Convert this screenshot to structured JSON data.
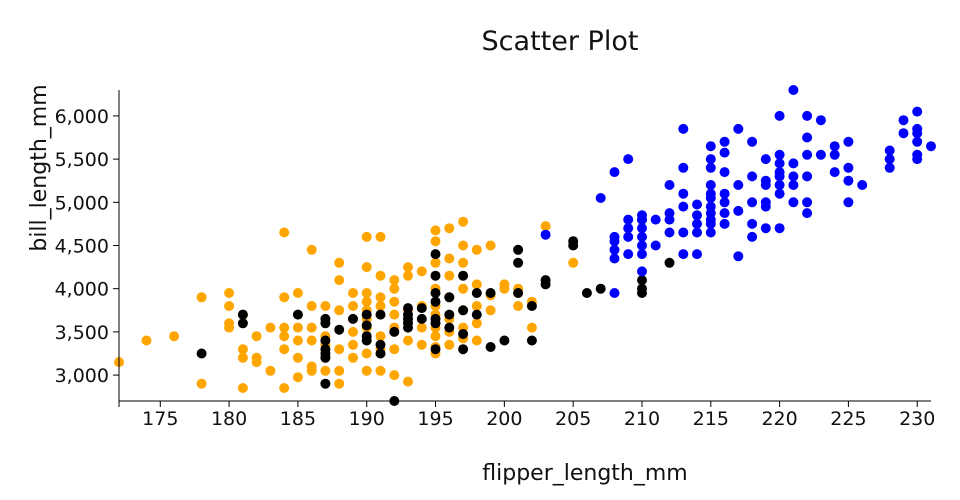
{
  "chart_data": {
    "type": "scatter",
    "title": "Scatter Plot",
    "xlabel": "flipper_length_mm",
    "ylabel": "bill_length_mm",
    "xlim": [
      172,
      231
    ],
    "ylim": [
      2700,
      6300
    ],
    "x_ticks": [
      {
        "value": 175,
        "label": "175"
      },
      {
        "value": 180,
        "label": "180"
      },
      {
        "value": 185,
        "label": "185"
      },
      {
        "value": 190,
        "label": "190"
      },
      {
        "value": 195,
        "label": "195"
      },
      {
        "value": 200,
        "label": "200"
      },
      {
        "value": 205,
        "label": "205"
      },
      {
        "value": 210,
        "label": "210"
      },
      {
        "value": 215,
        "label": "215"
      },
      {
        "value": 220,
        "label": "220"
      },
      {
        "value": 225,
        "label": "225"
      },
      {
        "value": 230,
        "label": "230"
      }
    ],
    "y_ticks": [
      {
        "value": 3000,
        "label": "3,000"
      },
      {
        "value": 3500,
        "label": "3,500"
      },
      {
        "value": 4000,
        "label": "4,000"
      },
      {
        "value": 4500,
        "label": "4,500"
      },
      {
        "value": 5000,
        "label": "5,000"
      },
      {
        "value": 5500,
        "label": "5,500"
      },
      {
        "value": 6000,
        "label": "6,000"
      }
    ],
    "grid": false,
    "legend": "none",
    "series": [
      {
        "color": "#FFA500",
        "points": [
          [
            172,
            3150
          ],
          [
            174,
            3400
          ],
          [
            176,
            3450
          ],
          [
            178,
            3900
          ],
          [
            178,
            2900
          ],
          [
            180,
            3950
          ],
          [
            180,
            3800
          ],
          [
            180,
            3600
          ],
          [
            180,
            3550
          ],
          [
            181,
            3700
          ],
          [
            181,
            3300
          ],
          [
            181,
            3200
          ],
          [
            181,
            2850
          ],
          [
            182,
            3450
          ],
          [
            182,
            3200
          ],
          [
            182,
            3150
          ],
          [
            183,
            3550
          ],
          [
            183,
            3050
          ],
          [
            184,
            4650
          ],
          [
            184,
            3900
          ],
          [
            184,
            3550
          ],
          [
            184,
            3450
          ],
          [
            184,
            3300
          ],
          [
            184,
            2850
          ],
          [
            185,
            3950
          ],
          [
            185,
            3700
          ],
          [
            185,
            3550
          ],
          [
            185,
            3400
          ],
          [
            185,
            3200
          ],
          [
            185,
            2975
          ],
          [
            186,
            4450
          ],
          [
            186,
            3800
          ],
          [
            186,
            3550
          ],
          [
            186,
            3400
          ],
          [
            186,
            3100
          ],
          [
            186,
            3050
          ],
          [
            187,
            3800
          ],
          [
            187,
            3450
          ],
          [
            187,
            3350
          ],
          [
            187,
            3200
          ],
          [
            187,
            3050
          ],
          [
            188,
            4300
          ],
          [
            188,
            4100
          ],
          [
            188,
            3750
          ],
          [
            188,
            3300
          ],
          [
            188,
            3050
          ],
          [
            188,
            2900
          ],
          [
            189,
            3950
          ],
          [
            189,
            3800
          ],
          [
            189,
            3650
          ],
          [
            189,
            3500
          ],
          [
            189,
            3350
          ],
          [
            189,
            3200
          ],
          [
            190,
            4600
          ],
          [
            190,
            4250
          ],
          [
            190,
            3950
          ],
          [
            190,
            3850
          ],
          [
            190,
            3750
          ],
          [
            190,
            3650
          ],
          [
            190,
            3550
          ],
          [
            190,
            3400
          ],
          [
            190,
            3250
          ],
          [
            190,
            3050
          ],
          [
            191,
            4600
          ],
          [
            191,
            4150
          ],
          [
            191,
            3900
          ],
          [
            191,
            3800
          ],
          [
            191,
            3700
          ],
          [
            191,
            3450
          ],
          [
            191,
            3300
          ],
          [
            191,
            3050
          ],
          [
            192,
            4100
          ],
          [
            192,
            4000
          ],
          [
            192,
            3850
          ],
          [
            192,
            3700
          ],
          [
            192,
            3550
          ],
          [
            192,
            3300
          ],
          [
            192,
            3000
          ],
          [
            193,
            4250
          ],
          [
            193,
            4150
          ],
          [
            193,
            3750
          ],
          [
            193,
            3600
          ],
          [
            193,
            3400
          ],
          [
            193,
            2925
          ],
          [
            194,
            4200
          ],
          [
            194,
            3800
          ],
          [
            194,
            3550
          ],
          [
            194,
            3350
          ],
          [
            195,
            4675
          ],
          [
            195,
            4550
          ],
          [
            195,
            4300
          ],
          [
            195,
            4000
          ],
          [
            195,
            3800
          ],
          [
            195,
            3700
          ],
          [
            195,
            3550
          ],
          [
            195,
            3450
          ],
          [
            195,
            3325
          ],
          [
            195,
            3250
          ],
          [
            196,
            4700
          ],
          [
            196,
            4350
          ],
          [
            196,
            4150
          ],
          [
            196,
            3900
          ],
          [
            196,
            3650
          ],
          [
            196,
            3500
          ],
          [
            196,
            3350
          ],
          [
            197,
            4775
          ],
          [
            197,
            4500
          ],
          [
            197,
            4300
          ],
          [
            197,
            4000
          ],
          [
            197,
            3750
          ],
          [
            197,
            3550
          ],
          [
            197,
            3425
          ],
          [
            198,
            4450
          ],
          [
            198,
            4050
          ],
          [
            198,
            3800
          ],
          [
            198,
            3600
          ],
          [
            198,
            3400
          ],
          [
            199,
            4500
          ],
          [
            199,
            3925
          ],
          [
            199,
            3750
          ],
          [
            200,
            4050
          ],
          [
            200,
            4000
          ],
          [
            201,
            4000
          ],
          [
            201,
            3950
          ],
          [
            201,
            3800
          ],
          [
            202,
            3850
          ],
          [
            202,
            3550
          ],
          [
            203,
            4725
          ],
          [
            205,
            4300
          ]
        ]
      },
      {
        "color": "#000000",
        "points": [
          [
            178,
            3250
          ],
          [
            181,
            3700
          ],
          [
            181,
            3600
          ],
          [
            185,
            3700
          ],
          [
            187,
            3650
          ],
          [
            187,
            3600
          ],
          [
            187,
            3400
          ],
          [
            187,
            3300
          ],
          [
            187,
            3250
          ],
          [
            187,
            3200
          ],
          [
            187,
            2900
          ],
          [
            188,
            3525
          ],
          [
            189,
            3650
          ],
          [
            190,
            3700
          ],
          [
            190,
            3575
          ],
          [
            190,
            3450
          ],
          [
            190,
            3400
          ],
          [
            191,
            3700
          ],
          [
            191,
            3350
          ],
          [
            191,
            3250
          ],
          [
            192,
            2700
          ],
          [
            192,
            3500
          ],
          [
            193,
            3775
          ],
          [
            193,
            3700
          ],
          [
            193,
            3650
          ],
          [
            193,
            3600
          ],
          [
            193,
            3550
          ],
          [
            194,
            3775
          ],
          [
            194,
            3650
          ],
          [
            195,
            4400
          ],
          [
            195,
            4150
          ],
          [
            195,
            3950
          ],
          [
            195,
            3850
          ],
          [
            195,
            3650
          ],
          [
            195,
            3600
          ],
          [
            195,
            3300
          ],
          [
            196,
            3900
          ],
          [
            196,
            3700
          ],
          [
            196,
            3550
          ],
          [
            197,
            4150
          ],
          [
            197,
            3750
          ],
          [
            197,
            3475
          ],
          [
            197,
            3300
          ],
          [
            198,
            3950
          ],
          [
            198,
            3700
          ],
          [
            199,
            3950
          ],
          [
            199,
            3325
          ],
          [
            200,
            3400
          ],
          [
            201,
            4450
          ],
          [
            201,
            4300
          ],
          [
            201,
            3950
          ],
          [
            202,
            3800
          ],
          [
            202,
            3400
          ],
          [
            203,
            4100
          ],
          [
            203,
            4050
          ],
          [
            205,
            4550
          ],
          [
            205,
            4500
          ],
          [
            206,
            3950
          ],
          [
            207,
            4000
          ],
          [
            210,
            4800
          ],
          [
            210,
            4100
          ],
          [
            210,
            4000
          ],
          [
            210,
            3950
          ],
          [
            212,
            4300
          ]
        ]
      },
      {
        "color": "#0000FF",
        "points": [
          [
            203,
            4625
          ],
          [
            207,
            5050
          ],
          [
            208,
            5350
          ],
          [
            208,
            4600
          ],
          [
            208,
            4550
          ],
          [
            208,
            4450
          ],
          [
            208,
            4350
          ],
          [
            208,
            3950
          ],
          [
            209,
            5500
          ],
          [
            209,
            4800
          ],
          [
            209,
            4700
          ],
          [
            209,
            4600
          ],
          [
            209,
            4400
          ],
          [
            210,
            4850
          ],
          [
            210,
            4800
          ],
          [
            210,
            4700
          ],
          [
            210,
            4600
          ],
          [
            210,
            4500
          ],
          [
            210,
            4400
          ],
          [
            210,
            4200
          ],
          [
            211,
            4800
          ],
          [
            211,
            4500
          ],
          [
            212,
            5200
          ],
          [
            212,
            4875
          ],
          [
            212,
            4800
          ],
          [
            212,
            4650
          ],
          [
            213,
            5850
          ],
          [
            213,
            5400
          ],
          [
            213,
            5100
          ],
          [
            213,
            4950
          ],
          [
            213,
            4650
          ],
          [
            213,
            4400
          ],
          [
            214,
            4975
          ],
          [
            214,
            4850
          ],
          [
            214,
            4750
          ],
          [
            214,
            4650
          ],
          [
            214,
            4400
          ],
          [
            215,
            5650
          ],
          [
            215,
            5500
          ],
          [
            215,
            5400
          ],
          [
            215,
            5200
          ],
          [
            215,
            5100
          ],
          [
            215,
            5050
          ],
          [
            215,
            4950
          ],
          [
            215,
            4875
          ],
          [
            215,
            4800
          ],
          [
            215,
            4750
          ],
          [
            215,
            4650
          ],
          [
            216,
            5700
          ],
          [
            216,
            5575
          ],
          [
            216,
            5350
          ],
          [
            216,
            5100
          ],
          [
            216,
            5000
          ],
          [
            216,
            4875
          ],
          [
            216,
            4750
          ],
          [
            217,
            5850
          ],
          [
            217,
            5200
          ],
          [
            217,
            4900
          ],
          [
            217,
            4375
          ],
          [
            218,
            5700
          ],
          [
            218,
            5300
          ],
          [
            218,
            5000
          ],
          [
            218,
            4750
          ],
          [
            218,
            4600
          ],
          [
            219,
            5500
          ],
          [
            219,
            5250
          ],
          [
            219,
            5200
          ],
          [
            219,
            5000
          ],
          [
            219,
            4950
          ],
          [
            219,
            4700
          ],
          [
            220,
            6000
          ],
          [
            220,
            5550
          ],
          [
            220,
            5450
          ],
          [
            220,
            5350
          ],
          [
            220,
            5300
          ],
          [
            220,
            5200
          ],
          [
            220,
            5100
          ],
          [
            220,
            4700
          ],
          [
            221,
            6300
          ],
          [
            221,
            5450
          ],
          [
            221,
            5300
          ],
          [
            221,
            5200
          ],
          [
            221,
            5000
          ],
          [
            222,
            6000
          ],
          [
            222,
            5750
          ],
          [
            222,
            5550
          ],
          [
            222,
            5300
          ],
          [
            222,
            5000
          ],
          [
            222,
            4875
          ],
          [
            223,
            5950
          ],
          [
            223,
            5550
          ],
          [
            224,
            5650
          ],
          [
            224,
            5550
          ],
          [
            224,
            5350
          ],
          [
            225,
            5700
          ],
          [
            225,
            5400
          ],
          [
            225,
            5250
          ],
          [
            225,
            5000
          ],
          [
            226,
            5200
          ],
          [
            228,
            5600
          ],
          [
            228,
            5500
          ],
          [
            228,
            5400
          ],
          [
            229,
            5950
          ],
          [
            229,
            5800
          ],
          [
            230,
            6050
          ],
          [
            230,
            5850
          ],
          [
            230,
            5800
          ],
          [
            230,
            5700
          ],
          [
            230,
            5550
          ],
          [
            230,
            5500
          ],
          [
            231,
            5650
          ]
        ]
      }
    ]
  }
}
